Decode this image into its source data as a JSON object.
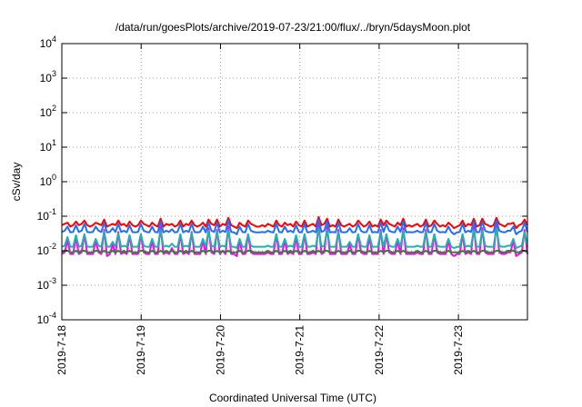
{
  "chart_data": {
    "type": "line",
    "title": "/data/run/goesPlots/archive/2019-07-23/21:00/flux/../bryn/5daysMoon.plot",
    "xlabel": "Coordinated Universal Time (UTC)",
    "ylabel": "cSv/day",
    "yscale": "log",
    "ylim": [
      0.0001,
      10000
    ],
    "xlim": [
      0,
      5.87
    ],
    "grid": true,
    "legend": "none",
    "x_ticks": [
      {
        "value": 0,
        "label": "2019-7-18"
      },
      {
        "value": 1,
        "label": "2019-7-19"
      },
      {
        "value": 2,
        "label": "2019-7-20"
      },
      {
        "value": 3,
        "label": "2019-7-21"
      },
      {
        "value": 4,
        "label": "2019-7-22"
      },
      {
        "value": 5,
        "label": "2019-7-23"
      }
    ],
    "y_ticks": [
      {
        "value": 0.0001,
        "base": "10",
        "exp": "-4"
      },
      {
        "value": 0.001,
        "base": "10",
        "exp": "-3"
      },
      {
        "value": 0.01,
        "base": "10",
        "exp": "-2"
      },
      {
        "value": 0.1,
        "base": "10",
        "exp": "-1"
      },
      {
        "value": 1,
        "base": "10",
        "exp": "0"
      },
      {
        "value": 10,
        "base": "10",
        "exp": "1"
      },
      {
        "value": 100,
        "base": "10",
        "exp": "2"
      },
      {
        "value": 1000,
        "base": "10",
        "exp": "3"
      },
      {
        "value": 10000,
        "base": "10",
        "exp": "4"
      }
    ],
    "series": [
      {
        "color": "#ff00ff",
        "values": [
          0.008,
          0.009,
          0.02,
          0.008,
          0.008,
          0.025,
          0.008,
          0.009,
          0.03,
          0.008,
          0.008,
          0.008,
          0.02,
          0.009,
          0.008,
          0.04,
          0.007,
          0.008,
          0.015,
          0.008,
          0.035,
          0.008,
          0.009,
          0.008,
          0.028,
          0.008,
          0.008,
          0.008,
          0.03,
          0.009,
          0.008,
          0.008,
          0.02,
          0.008,
          0.008,
          0.05,
          0.008,
          0.009,
          0.008,
          0.012,
          0.008,
          0.008,
          0.03,
          0.008,
          0.009,
          0.008,
          0.035,
          0.008,
          0.008,
          0.008,
          0.02,
          0.008,
          0.045,
          0.009,
          0.008,
          0.04,
          0.008,
          0.01,
          0.008,
          0.05,
          0.008,
          0.008,
          0.007,
          0.02,
          0.008,
          0.008,
          0.03,
          0.009,
          0.008,
          0.008,
          0.008,
          0.008,
          0.008,
          0.009,
          0.008,
          0.008,
          0.03,
          0.008,
          0.008,
          0.02,
          0.008,
          0.009,
          0.008,
          0.025,
          0.008,
          0.008,
          0.03,
          0.008,
          0.008,
          0.009,
          0.008,
          0.06,
          0.008,
          0.009,
          0.05,
          0.008,
          0.008,
          0.008,
          0.04,
          0.008,
          0.008,
          0.008,
          0.015,
          0.008,
          0.008,
          0.03,
          0.009,
          0.008,
          0.008,
          0.025,
          0.008,
          0.008,
          0.008,
          0.04,
          0.008,
          0.03,
          0.009,
          0.008,
          0.008,
          0.02,
          0.008,
          0.045,
          0.008,
          0.008,
          0.008,
          0.008,
          0.009,
          0.008,
          0.008,
          0.04,
          0.008,
          0.008,
          0.03,
          0.009,
          0.008,
          0.008,
          0.008,
          0.02,
          0.008,
          0.007,
          0.008,
          0.008,
          0.03,
          0.008,
          0.009,
          0.008,
          0.05,
          0.008,
          0.008,
          0.045,
          0.009,
          0.008,
          0.008,
          0.008,
          0.06,
          0.009,
          0.008,
          0.008,
          0.009,
          0.009,
          0.02,
          0.007,
          0.008,
          0.009,
          0.04,
          0.008
        ]
      },
      {
        "color": "#228b22",
        "values": [
          0.009,
          0.01,
          0.01,
          0.009,
          0.009,
          0.01,
          0.009,
          0.01,
          0.01,
          0.009,
          0.009,
          0.009,
          0.01,
          0.01,
          0.009,
          0.01,
          0.009,
          0.009,
          0.01,
          0.009,
          0.01,
          0.009,
          0.01,
          0.009,
          0.01,
          0.009,
          0.009,
          0.009,
          0.01,
          0.01,
          0.009,
          0.009,
          0.01,
          0.009,
          0.009,
          0.01,
          0.009,
          0.01,
          0.009,
          0.01,
          0.009,
          0.009,
          0.01,
          0.009,
          0.01,
          0.009,
          0.01,
          0.009,
          0.009,
          0.009,
          0.01,
          0.009,
          0.01,
          0.01,
          0.009,
          0.01,
          0.009,
          0.01,
          0.009,
          0.01,
          0.009,
          0.009,
          0.009,
          0.01,
          0.009,
          0.009,
          0.01,
          0.01,
          0.009,
          0.009,
          0.009,
          0.009,
          0.009,
          0.01,
          0.009,
          0.009,
          0.01,
          0.009,
          0.009,
          0.01,
          0.009,
          0.01,
          0.009,
          0.01,
          0.009,
          0.009,
          0.01,
          0.009,
          0.009,
          0.01,
          0.009,
          0.01,
          0.009,
          0.01,
          0.01,
          0.009,
          0.009,
          0.009,
          0.01,
          0.009,
          0.009,
          0.009,
          0.01,
          0.009,
          0.009,
          0.01,
          0.01,
          0.009,
          0.009,
          0.01,
          0.009,
          0.009,
          0.009,
          0.01,
          0.009,
          0.01,
          0.01,
          0.009,
          0.009,
          0.01,
          0.009,
          0.01,
          0.009,
          0.009,
          0.009,
          0.009,
          0.01,
          0.009,
          0.009,
          0.01,
          0.009,
          0.009,
          0.01,
          0.01,
          0.009,
          0.009,
          0.009,
          0.01,
          0.009,
          0.009,
          0.009,
          0.009,
          0.01,
          0.009,
          0.01,
          0.009,
          0.01,
          0.009,
          0.009,
          0.01,
          0.01,
          0.009,
          0.009,
          0.009,
          0.01,
          0.01,
          0.009,
          0.009,
          0.01,
          0.01,
          0.01,
          0.009,
          0.009,
          0.01,
          0.01,
          0.009
        ]
      },
      {
        "color": "#20b2aa",
        "values": [
          0.013,
          0.014,
          0.025,
          0.013,
          0.013,
          0.028,
          0.013,
          0.014,
          0.03,
          0.013,
          0.013,
          0.013,
          0.022,
          0.014,
          0.013,
          0.035,
          0.013,
          0.013,
          0.018,
          0.013,
          0.032,
          0.013,
          0.014,
          0.013,
          0.028,
          0.013,
          0.013,
          0.013,
          0.03,
          0.014,
          0.013,
          0.013,
          0.022,
          0.013,
          0.013,
          0.04,
          0.013,
          0.014,
          0.013,
          0.016,
          0.013,
          0.013,
          0.03,
          0.013,
          0.014,
          0.013,
          0.032,
          0.013,
          0.013,
          0.013,
          0.022,
          0.013,
          0.038,
          0.014,
          0.013,
          0.035,
          0.013,
          0.014,
          0.013,
          0.04,
          0.013,
          0.013,
          0.012,
          0.022,
          0.013,
          0.013,
          0.03,
          0.014,
          0.013,
          0.013,
          0.013,
          0.013,
          0.013,
          0.014,
          0.013,
          0.013,
          0.03,
          0.013,
          0.013,
          0.022,
          0.013,
          0.014,
          0.013,
          0.028,
          0.013,
          0.013,
          0.03,
          0.013,
          0.013,
          0.014,
          0.013,
          0.045,
          0.013,
          0.014,
          0.04,
          0.013,
          0.013,
          0.013,
          0.035,
          0.013,
          0.013,
          0.013,
          0.018,
          0.013,
          0.013,
          0.03,
          0.014,
          0.013,
          0.013,
          0.028,
          0.013,
          0.013,
          0.013,
          0.035,
          0.013,
          0.03,
          0.014,
          0.013,
          0.013,
          0.022,
          0.013,
          0.038,
          0.013,
          0.013,
          0.013,
          0.013,
          0.014,
          0.013,
          0.013,
          0.035,
          0.013,
          0.013,
          0.03,
          0.014,
          0.013,
          0.013,
          0.013,
          0.022,
          0.013,
          0.012,
          0.013,
          0.013,
          0.03,
          0.013,
          0.014,
          0.013,
          0.04,
          0.013,
          0.013,
          0.038,
          0.014,
          0.013,
          0.013,
          0.013,
          0.045,
          0.014,
          0.013,
          0.013,
          0.014,
          0.014,
          0.022,
          0.012,
          0.013,
          0.014,
          0.035,
          0.013
        ]
      },
      {
        "color": "#ff0000",
        "values": [
          0.055,
          0.06,
          0.065,
          0.05,
          0.055,
          0.07,
          0.055,
          0.06,
          0.075,
          0.055,
          0.05,
          0.055,
          0.065,
          0.06,
          0.055,
          0.08,
          0.05,
          0.055,
          0.06,
          0.055,
          0.075,
          0.055,
          0.06,
          0.05,
          0.07,
          0.055,
          0.05,
          0.055,
          0.075,
          0.06,
          0.055,
          0.05,
          0.065,
          0.055,
          0.05,
          0.085,
          0.05,
          0.06,
          0.055,
          0.06,
          0.05,
          0.055,
          0.075,
          0.05,
          0.06,
          0.055,
          0.075,
          0.055,
          0.05,
          0.055,
          0.065,
          0.05,
          0.08,
          0.06,
          0.055,
          0.08,
          0.05,
          0.06,
          0.055,
          0.09,
          0.055,
          0.05,
          0.045,
          0.065,
          0.055,
          0.05,
          0.075,
          0.06,
          0.055,
          0.05,
          0.05,
          0.055,
          0.05,
          0.06,
          0.055,
          0.05,
          0.075,
          0.055,
          0.05,
          0.065,
          0.055,
          0.06,
          0.05,
          0.07,
          0.055,
          0.05,
          0.075,
          0.05,
          0.055,
          0.06,
          0.05,
          0.095,
          0.055,
          0.06,
          0.085,
          0.05,
          0.055,
          0.05,
          0.08,
          0.055,
          0.05,
          0.055,
          0.06,
          0.05,
          0.055,
          0.075,
          0.06,
          0.05,
          0.055,
          0.07,
          0.05,
          0.055,
          0.05,
          0.08,
          0.055,
          0.075,
          0.06,
          0.055,
          0.05,
          0.065,
          0.055,
          0.085,
          0.05,
          0.055,
          0.05,
          0.055,
          0.06,
          0.05,
          0.055,
          0.08,
          0.05,
          0.055,
          0.075,
          0.06,
          0.05,
          0.055,
          0.05,
          0.065,
          0.055,
          0.045,
          0.05,
          0.055,
          0.075,
          0.05,
          0.06,
          0.055,
          0.085,
          0.05,
          0.055,
          0.085,
          0.06,
          0.055,
          0.05,
          0.055,
          0.09,
          0.06,
          0.055,
          0.05,
          0.06,
          0.06,
          0.065,
          0.045,
          0.055,
          0.06,
          0.08,
          0.055
        ]
      },
      {
        "color": "#1e6fff",
        "values": [
          0.035,
          0.038,
          0.05,
          0.034,
          0.035,
          0.055,
          0.035,
          0.038,
          0.06,
          0.035,
          0.034,
          0.035,
          0.05,
          0.038,
          0.035,
          0.065,
          0.034,
          0.035,
          0.045,
          0.035,
          0.06,
          0.035,
          0.038,
          0.034,
          0.055,
          0.035,
          0.034,
          0.035,
          0.06,
          0.038,
          0.035,
          0.034,
          0.05,
          0.035,
          0.034,
          0.07,
          0.034,
          0.038,
          0.035,
          0.042,
          0.034,
          0.035,
          0.06,
          0.034,
          0.038,
          0.035,
          0.06,
          0.035,
          0.034,
          0.035,
          0.05,
          0.034,
          0.065,
          0.038,
          0.035,
          0.065,
          0.034,
          0.038,
          0.035,
          0.075,
          0.035,
          0.034,
          0.03,
          0.05,
          0.035,
          0.034,
          0.06,
          0.038,
          0.035,
          0.034,
          0.034,
          0.035,
          0.034,
          0.038,
          0.035,
          0.034,
          0.06,
          0.035,
          0.034,
          0.05,
          0.035,
          0.038,
          0.034,
          0.055,
          0.035,
          0.034,
          0.06,
          0.034,
          0.035,
          0.038,
          0.034,
          0.08,
          0.035,
          0.038,
          0.07,
          0.034,
          0.035,
          0.034,
          0.065,
          0.035,
          0.034,
          0.035,
          0.045,
          0.034,
          0.035,
          0.06,
          0.038,
          0.034,
          0.035,
          0.055,
          0.034,
          0.035,
          0.034,
          0.065,
          0.035,
          0.06,
          0.038,
          0.035,
          0.034,
          0.05,
          0.035,
          0.07,
          0.034,
          0.035,
          0.034,
          0.035,
          0.038,
          0.034,
          0.035,
          0.065,
          0.034,
          0.035,
          0.06,
          0.038,
          0.034,
          0.035,
          0.034,
          0.05,
          0.035,
          0.03,
          0.034,
          0.035,
          0.06,
          0.034,
          0.038,
          0.035,
          0.07,
          0.034,
          0.035,
          0.07,
          0.038,
          0.035,
          0.034,
          0.035,
          0.075,
          0.038,
          0.035,
          0.034,
          0.038,
          0.038,
          0.05,
          0.03,
          0.035,
          0.038,
          0.065,
          0.035
        ]
      }
    ]
  }
}
